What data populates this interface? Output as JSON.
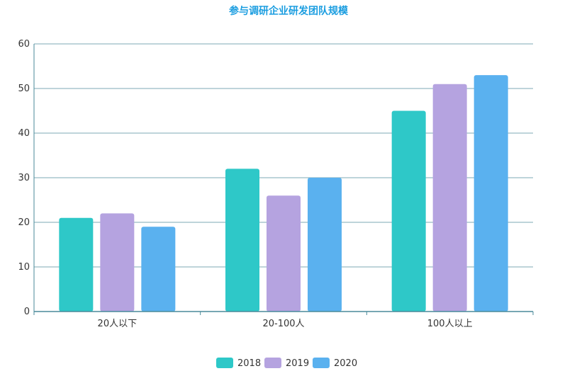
{
  "chart_data": {
    "type": "bar",
    "title": "参与调研企业研发团队规模",
    "categories": [
      "20人以下",
      "20-100人",
      "100人以上"
    ],
    "series": [
      {
        "name": "2018",
        "values": [
          21,
          32,
          45
        ]
      },
      {
        "name": "2019",
        "values": [
          22,
          26,
          51
        ]
      },
      {
        "name": "2020",
        "values": [
          19,
          30,
          53
        ]
      }
    ],
    "ylim": [
      0,
      60
    ],
    "yticks": [
      0,
      10,
      20,
      30,
      40,
      50,
      60
    ],
    "xlabel": "",
    "ylabel": "",
    "grid": true,
    "legend_position": "bottom-center"
  },
  "colors": {
    "title": "#1a9de0",
    "series": [
      "#2ec8c8",
      "#b5a3e0",
      "#5ab1ef"
    ],
    "grid": "#7ea9b5",
    "axis": "#4a8a9a"
  }
}
